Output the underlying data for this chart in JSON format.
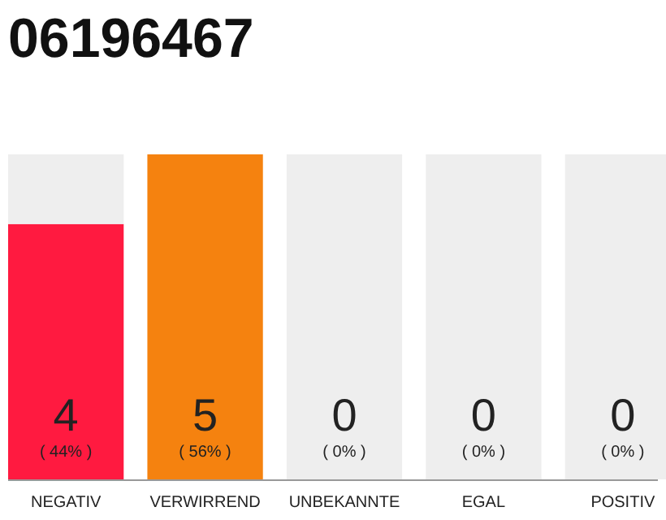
{
  "chart_data": {
    "type": "bar",
    "title": "06196467",
    "categories": [
      "NEGATIV",
      "VERWIRREND",
      "UNBEKANNTE",
      "EGAL",
      "POSITIV"
    ],
    "stacked": true,
    "series": [
      {
        "colors": [
          "#ff1a40",
          "#f5820f",
          "#eeeeee",
          "#eeeeee",
          "#eeeeee"
        ],
        "values": [
          44,
          56,
          0,
          0,
          0
        ],
        "value_labels": [
          "( 44% )",
          "( 56% )",
          "( 0% )",
          "( 0% )",
          "( 0% )"
        ]
      },
      {
        "color": "#eeeeee",
        "values": [
          12,
          0,
          56,
          56,
          56
        ]
      }
    ],
    "annotations": [
      "4",
      "5",
      "0",
      "0",
      "0"
    ],
    "tick_labels": "x"
  }
}
